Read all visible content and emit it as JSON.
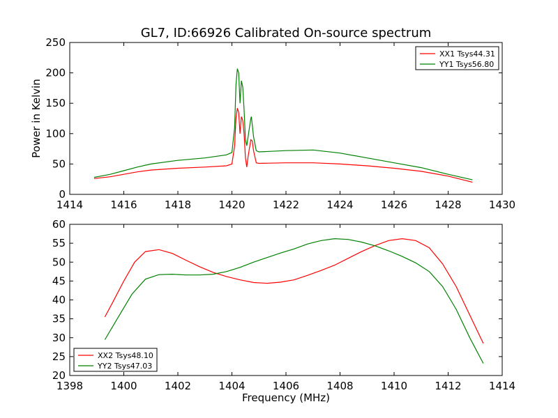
{
  "figure_title": "GL7, ID:66926 Calibrated On-source spectrum",
  "colors": {
    "red": "#ff0000",
    "green": "#008000"
  },
  "chart_data": [
    {
      "type": "line",
      "title": "GL7, ID:66926 Calibrated On-source spectrum",
      "xlabel": "",
      "ylabel": "Power in Kelvin",
      "xlim": [
        1414,
        1430
      ],
      "ylim": [
        0,
        250
      ],
      "xticks": [
        "1414",
        "1416",
        "1418",
        "1420",
        "1422",
        "1424",
        "1426",
        "1428",
        "1430"
      ],
      "yticks": [
        "0",
        "50",
        "100",
        "150",
        "200",
        "250"
      ],
      "grid": false,
      "legend": "upper-right",
      "series": [
        {
          "name": "XX1 Tsys44.31",
          "color": "#ff0000",
          "points": [
            [
              1414.9,
              26
            ],
            [
              1415.5,
              29
            ],
            [
              1416,
              33
            ],
            [
              1416.5,
              37
            ],
            [
              1417,
              40
            ],
            [
              1418,
              43
            ],
            [
              1419,
              45
            ],
            [
              1419.8,
              47
            ],
            [
              1420.0,
              50
            ],
            [
              1420.1,
              80
            ],
            [
              1420.15,
              125
            ],
            [
              1420.2,
              142
            ],
            [
              1420.25,
              135
            ],
            [
              1420.3,
              100
            ],
            [
              1420.35,
              128
            ],
            [
              1420.4,
              122
            ],
            [
              1420.45,
              100
            ],
            [
              1420.5,
              60
            ],
            [
              1420.55,
              45
            ],
            [
              1420.6,
              62
            ],
            [
              1420.7,
              90
            ],
            [
              1420.75,
              88
            ],
            [
              1420.8,
              72
            ],
            [
              1420.9,
              52
            ],
            [
              1421,
              51
            ],
            [
              1422,
              52
            ],
            [
              1423,
              52
            ],
            [
              1424,
              50
            ],
            [
              1425,
              47
            ],
            [
              1426,
              43
            ],
            [
              1427,
              38
            ],
            [
              1428,
              30
            ],
            [
              1428.9,
              20
            ]
          ]
        },
        {
          "name": "YY1 Tsys56.80",
          "color": "#008000",
          "points": [
            [
              1414.9,
              28
            ],
            [
              1415.5,
              33
            ],
            [
              1416,
              39
            ],
            [
              1416.5,
              45
            ],
            [
              1417,
              50
            ],
            [
              1418,
              56
            ],
            [
              1419,
              60
            ],
            [
              1419.8,
              65
            ],
            [
              1420.0,
              69
            ],
            [
              1420.1,
              110
            ],
            [
              1420.15,
              180
            ],
            [
              1420.2,
              207
            ],
            [
              1420.25,
              200
            ],
            [
              1420.3,
              150
            ],
            [
              1420.35,
              187
            ],
            [
              1420.4,
              177
            ],
            [
              1420.45,
              140
            ],
            [
              1420.5,
              90
            ],
            [
              1420.55,
              80
            ],
            [
              1420.6,
              95
            ],
            [
              1420.7,
              125
            ],
            [
              1420.72,
              128
            ],
            [
              1420.8,
              95
            ],
            [
              1420.9,
              72
            ],
            [
              1421,
              70
            ],
            [
              1422,
              72
            ],
            [
              1423,
              73
            ],
            [
              1424,
              68
            ],
            [
              1425,
              60
            ],
            [
              1426,
              52
            ],
            [
              1427,
              44
            ],
            [
              1428,
              33
            ],
            [
              1428.9,
              24
            ]
          ]
        }
      ]
    },
    {
      "type": "line",
      "title": "",
      "xlabel": "Frequency (MHz)",
      "ylabel": "",
      "xlim": [
        1398,
        1414
      ],
      "ylim": [
        20,
        60
      ],
      "xticks": [
        "1398",
        "1400",
        "1402",
        "1404",
        "1406",
        "1408",
        "1410",
        "1412",
        "1414"
      ],
      "yticks": [
        "20",
        "25",
        "30",
        "35",
        "40",
        "45",
        "50",
        "55",
        "60"
      ],
      "grid": false,
      "legend": "lower-left",
      "series": [
        {
          "name": "XX2 Tsys48.10",
          "color": "#ff0000",
          "points": [
            [
              1399.3,
              35.5
            ],
            [
              1399.6,
              39.5
            ],
            [
              1400,
              45
            ],
            [
              1400.4,
              50
            ],
            [
              1400.8,
              52.8
            ],
            [
              1401.3,
              53.3
            ],
            [
              1401.8,
              52.3
            ],
            [
              1402.3,
              50.5
            ],
            [
              1402.8,
              48.8
            ],
            [
              1403.3,
              47.3
            ],
            [
              1403.8,
              46.2
            ],
            [
              1404.3,
              45.3
            ],
            [
              1404.8,
              44.6
            ],
            [
              1405.3,
              44.4
            ],
            [
              1405.8,
              44.7
            ],
            [
              1406.3,
              45.3
            ],
            [
              1406.8,
              46.5
            ],
            [
              1407.3,
              47.8
            ],
            [
              1407.8,
              49.2
            ],
            [
              1408.3,
              51
            ],
            [
              1408.8,
              52.8
            ],
            [
              1409.3,
              54.4
            ],
            [
              1409.8,
              55.7
            ],
            [
              1410.3,
              56.2
            ],
            [
              1410.8,
              55.7
            ],
            [
              1411.3,
              53.8
            ],
            [
              1411.8,
              49.5
            ],
            [
              1412.3,
              43.5
            ],
            [
              1412.8,
              36
            ],
            [
              1413.3,
              28.5
            ]
          ]
        },
        {
          "name": "YY2 Tsys47.03",
          "color": "#008000",
          "points": [
            [
              1399.3,
              29.5
            ],
            [
              1399.8,
              35.5
            ],
            [
              1400.3,
              41.5
            ],
            [
              1400.8,
              45.5
            ],
            [
              1401.3,
              46.7
            ],
            [
              1401.8,
              46.8
            ],
            [
              1402.3,
              46.6
            ],
            [
              1402.8,
              46.6
            ],
            [
              1403.3,
              46.8
            ],
            [
              1403.8,
              47.5
            ],
            [
              1404.3,
              48.6
            ],
            [
              1404.8,
              50
            ],
            [
              1405.3,
              51.2
            ],
            [
              1405.8,
              52.4
            ],
            [
              1406.3,
              53.5
            ],
            [
              1406.8,
              54.8
            ],
            [
              1407.3,
              55.7
            ],
            [
              1407.8,
              56.2
            ],
            [
              1408.3,
              56
            ],
            [
              1408.8,
              55.3
            ],
            [
              1409.3,
              54.3
            ],
            [
              1409.8,
              53
            ],
            [
              1410.3,
              51.5
            ],
            [
              1410.8,
              49.8
            ],
            [
              1411.3,
              47.5
            ],
            [
              1411.8,
              43.5
            ],
            [
              1412.3,
              37.5
            ],
            [
              1412.8,
              30
            ],
            [
              1413.3,
              23.2
            ]
          ]
        }
      ]
    }
  ]
}
